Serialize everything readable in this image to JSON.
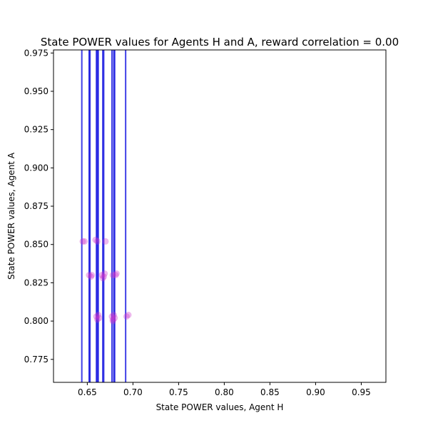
{
  "chart_data": {
    "type": "scatter",
    "title": "State POWER values for Agents H and A, reward correlation = 0.00",
    "xlabel": "State POWER values, Agent H",
    "ylabel": "State POWER values, Agent A",
    "xlim": [
      0.613,
      0.977
    ],
    "ylim": [
      0.76,
      0.977
    ],
    "xticks": [
      "0.65",
      "0.70",
      "0.75",
      "0.80",
      "0.85",
      "0.90",
      "0.95"
    ],
    "xtick_values": [
      0.65,
      0.7,
      0.75,
      0.8,
      0.85,
      0.9,
      0.95
    ],
    "yticks": [
      "0.775",
      "0.800",
      "0.825",
      "0.850",
      "0.875",
      "0.900",
      "0.925",
      "0.950",
      "0.975"
    ],
    "ytick_values": [
      0.775,
      0.8,
      0.825,
      0.85,
      0.875,
      0.9,
      0.925,
      0.95,
      0.975
    ],
    "grid": false,
    "vertical_lines": {
      "color": "#0000dd",
      "x": [
        0.644,
        0.652,
        0.653,
        0.66,
        0.661,
        0.662,
        0.667,
        0.668,
        0.677,
        0.679,
        0.68,
        0.692
      ]
    },
    "point_color": "#cc33cc",
    "points": [
      {
        "x": 0.645,
        "y": 0.852
      },
      {
        "x": 0.647,
        "y": 0.852
      },
      {
        "x": 0.659,
        "y": 0.853
      },
      {
        "x": 0.661,
        "y": 0.852
      },
      {
        "x": 0.67,
        "y": 0.852
      },
      {
        "x": 0.652,
        "y": 0.83
      },
      {
        "x": 0.654,
        "y": 0.829
      },
      {
        "x": 0.655,
        "y": 0.83
      },
      {
        "x": 0.666,
        "y": 0.83
      },
      {
        "x": 0.668,
        "y": 0.829
      },
      {
        "x": 0.669,
        "y": 0.831
      },
      {
        "x": 0.667,
        "y": 0.828
      },
      {
        "x": 0.678,
        "y": 0.83
      },
      {
        "x": 0.681,
        "y": 0.83
      },
      {
        "x": 0.682,
        "y": 0.831
      },
      {
        "x": 0.66,
        "y": 0.803
      },
      {
        "x": 0.661,
        "y": 0.801
      },
      {
        "x": 0.662,
        "y": 0.804
      },
      {
        "x": 0.663,
        "y": 0.802
      },
      {
        "x": 0.677,
        "y": 0.803
      },
      {
        "x": 0.678,
        "y": 0.801
      },
      {
        "x": 0.679,
        "y": 0.804
      },
      {
        "x": 0.68,
        "y": 0.802
      },
      {
        "x": 0.678,
        "y": 0.8
      },
      {
        "x": 0.693,
        "y": 0.803
      },
      {
        "x": 0.695,
        "y": 0.804
      }
    ]
  }
}
